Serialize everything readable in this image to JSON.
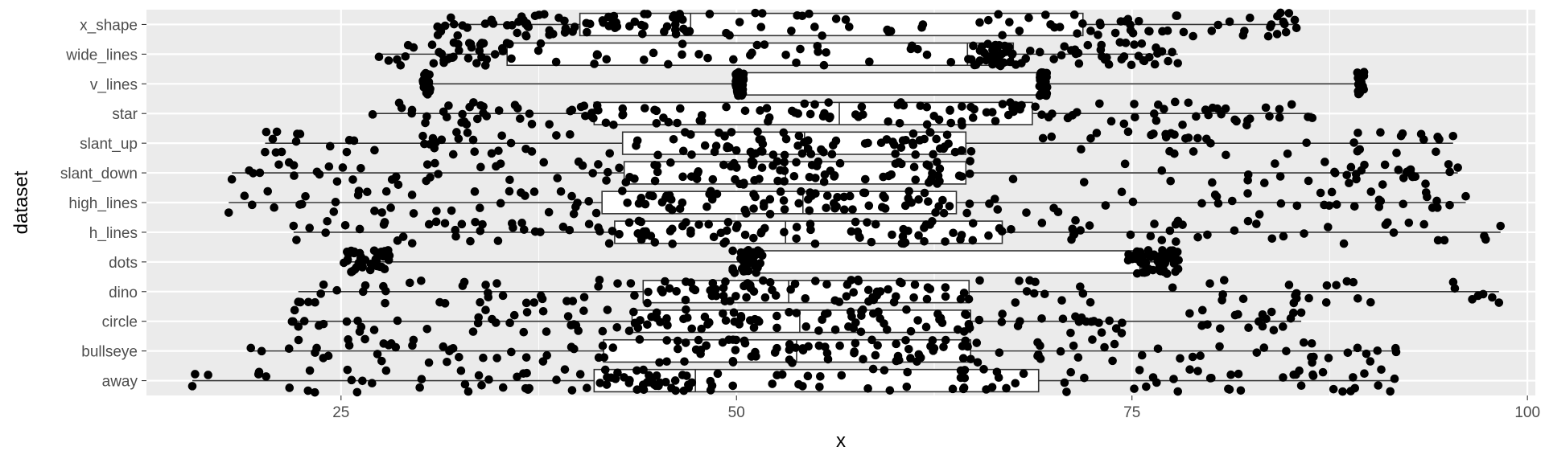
{
  "chart_data": {
    "type": "boxplot_with_jitter",
    "title": "",
    "xlabel": "x",
    "ylabel": "dataset",
    "xlim": [
      12.7,
      100.5
    ],
    "x_ticks": [
      25,
      50,
      75,
      100
    ],
    "x_tick_labels": [
      "25",
      "50",
      "75",
      "100"
    ],
    "grid": true,
    "point_color": "#000000",
    "box_fill": "#ffffff",
    "categories": [
      "away",
      "bullseye",
      "circle",
      "dino",
      "dots",
      "h_lines",
      "high_lines",
      "slant_down",
      "slant_up",
      "star",
      "v_lines",
      "wide_lines",
      "x_shape"
    ],
    "boxes": [
      {
        "dataset": "away",
        "min": 15.6,
        "q1": 41.0,
        "median": 47.4,
        "q3": 69.1,
        "max": 91.6
      },
      {
        "dataset": "bullseye",
        "min": 19.3,
        "q1": 41.6,
        "median": 53.8,
        "q3": 64.8,
        "max": 91.7
      },
      {
        "dataset": "circle",
        "min": 21.9,
        "q1": 43.4,
        "median": 54.0,
        "q3": 64.8,
        "max": 85.7
      },
      {
        "dataset": "dino",
        "min": 22.3,
        "q1": 44.1,
        "median": 53.3,
        "q3": 64.7,
        "max": 98.2
      },
      {
        "dataset": "dots",
        "min": 25.4,
        "q1": 50.4,
        "median": 50.9,
        "q3": 75.5,
        "max": 77.9
      },
      {
        "dataset": "h_lines",
        "min": 22.0,
        "q1": 42.3,
        "median": 53.1,
        "q3": 66.8,
        "max": 98.3
      },
      {
        "dataset": "high_lines",
        "min": 17.9,
        "q1": 41.5,
        "median": 54.2,
        "q3": 63.9,
        "max": 96.1
      },
      {
        "dataset": "slant_down",
        "min": 18.1,
        "q1": 42.9,
        "median": 53.1,
        "q3": 64.5,
        "max": 95.6
      },
      {
        "dataset": "slant_up",
        "min": 20.2,
        "q1": 42.8,
        "median": 54.3,
        "q3": 64.5,
        "max": 95.3
      },
      {
        "dataset": "star",
        "min": 27.0,
        "q1": 41.0,
        "median": 56.5,
        "q3": 68.7,
        "max": 86.4
      },
      {
        "dataset": "v_lines",
        "min": 30.4,
        "q1": 50.0,
        "median": 50.4,
        "q3": 69.5,
        "max": 89.5
      },
      {
        "dataset": "wide_lines",
        "min": 27.4,
        "q1": 35.5,
        "median": 64.6,
        "q3": 67.5,
        "max": 77.9
      },
      {
        "dataset": "x_shape",
        "min": 31.1,
        "q1": 40.1,
        "median": 47.1,
        "q3": 71.9,
        "max": 85.4
      }
    ],
    "jitter": {
      "points_per_dataset": 142,
      "seed": 7
    }
  }
}
